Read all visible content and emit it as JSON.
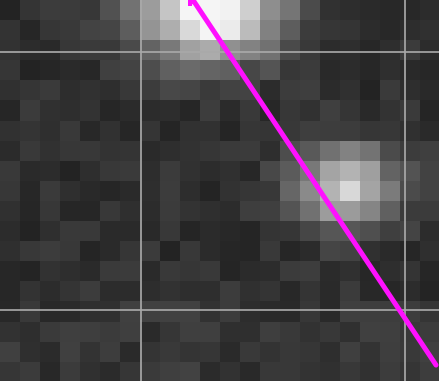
{
  "image": {
    "description_grid_cols": 22,
    "description_grid_rows": 19
  },
  "colors": {
    "background": "#262626",
    "guide_line": "#a9a9a9",
    "trace_line": "#ff10ff"
  },
  "blobs": [
    {
      "name": "bright-blob-top",
      "intensity": 1.0
    },
    {
      "name": "bright-blob-middle-right",
      "intensity": 0.85
    }
  ]
}
